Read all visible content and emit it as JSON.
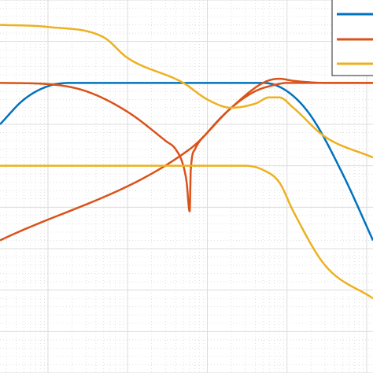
{
  "chart_data": {
    "type": "line",
    "title": "",
    "xlabel": "",
    "ylabel": "",
    "x_scale": "log",
    "xlim": [
      0.0025,
      120
    ],
    "ylim": [
      -70,
      20
    ],
    "grid": true,
    "minor_grid": true,
    "legend": {
      "placement": "top-right",
      "entries": [
        "",
        "",
        ""
      ]
    },
    "series": [
      {
        "color": "#0072BD",
        "points": [
          [
            0.0025,
            -10
          ],
          [
            0.005,
            -4
          ],
          [
            0.01,
            -0.8
          ],
          [
            0.02,
            0
          ],
          [
            1,
            0
          ],
          [
            5,
            0
          ],
          [
            10,
            -2
          ],
          [
            20,
            -8
          ],
          [
            50,
            -22
          ],
          [
            120,
            -38
          ]
        ]
      },
      {
        "color": "#D95319",
        "points": [
          [
            0.0025,
            0
          ],
          [
            0.01,
            -0.3
          ],
          [
            0.03,
            -2
          ],
          [
            0.1,
            -7
          ],
          [
            0.3,
            -14
          ],
          [
            0.4,
            -16
          ],
          [
            0.5,
            -20
          ],
          [
            0.55,
            -24
          ],
          [
            0.6,
            -31
          ],
          [
            0.62,
            -21
          ],
          [
            0.7,
            -16
          ],
          [
            1,
            -12
          ],
          [
            2,
            -6
          ],
          [
            4,
            -2
          ],
          [
            7,
            -0.5
          ],
          [
            10,
            0
          ],
          [
            15,
            0
          ],
          [
            40,
            0
          ],
          [
            120,
            0
          ]
        ]
      },
      {
        "color": "#D95319",
        "points": [
          [
            0.0025,
            -38
          ],
          [
            0.6,
            -16
          ],
          [
            2,
            -6
          ],
          [
            5,
            0
          ],
          [
            8,
            1
          ],
          [
            12,
            0.5
          ],
          [
            30,
            0
          ],
          [
            120,
            0
          ]
        ]
      },
      {
        "color": "#EDB120",
        "points": [
          [
            0.0025,
            14
          ],
          [
            0.01,
            13.5
          ],
          [
            0.05,
            11
          ],
          [
            0.1,
            6
          ],
          [
            0.5,
            0
          ],
          [
            1,
            -4
          ],
          [
            2,
            -6
          ],
          [
            4,
            -5
          ],
          [
            6,
            -3.5
          ],
          [
            8,
            -3.5
          ],
          [
            12,
            -6
          ],
          [
            30,
            -13
          ],
          [
            120,
            -18
          ]
        ]
      },
      {
        "color": "#EDB120",
        "points": [
          [
            0.0025,
            -20
          ],
          [
            1,
            -20
          ],
          [
            3,
            -20
          ],
          [
            5,
            -21
          ],
          [
            8,
            -24
          ],
          [
            12,
            -31
          ],
          [
            30,
            -44
          ],
          [
            120,
            -52
          ]
        ]
      }
    ]
  }
}
